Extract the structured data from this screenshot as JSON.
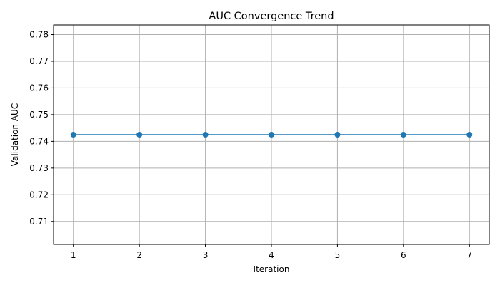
{
  "chart_data": {
    "type": "line",
    "title": "AUC Convergence Trend",
    "xlabel": "Iteration",
    "ylabel": "Validation AUC",
    "x": [
      1,
      2,
      3,
      4,
      5,
      6,
      7
    ],
    "series": [
      {
        "values": [
          0.7425,
          0.7425,
          0.7425,
          0.7425,
          0.7425,
          0.7425,
          0.7425
        ],
        "color": "#1f77b4",
        "marker": "circle"
      }
    ],
    "xticks": [
      1,
      2,
      3,
      4,
      5,
      6,
      7
    ],
    "yticks": [
      "0.71",
      "0.72",
      "0.73",
      "0.74",
      "0.75",
      "0.76",
      "0.77",
      "0.78"
    ],
    "xlim": [
      0.7,
      7.3
    ],
    "ylim": [
      0.7014,
      0.7836
    ],
    "grid": true,
    "legend": "none"
  }
}
